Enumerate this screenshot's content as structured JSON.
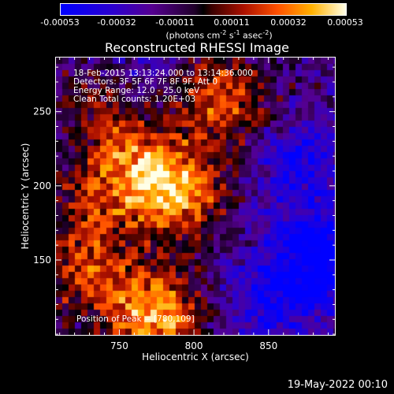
{
  "chart_data": {
    "type": "heatmap",
    "title": "Reconstructed RHESSI Image",
    "xlabel": "Heliocentric X (arcsec)",
    "ylabel": "Heliocentric Y (arcsec)",
    "xlim": [
      707,
      895
    ],
    "ylim": [
      99,
      287
    ],
    "x_ticks": [
      750,
      800,
      850
    ],
    "y_ticks": [
      150,
      200,
      250
    ],
    "colorbar": {
      "ticks": [
        "-0.00053",
        "-0.00032",
        "-0.00011",
        "0.00011",
        "0.00032",
        "0.00053"
      ],
      "range": [
        -0.00053,
        0.00053
      ],
      "unit_prefix": "(photons cm",
      "unit_sup1": "-2",
      "unit_mid1": " s",
      "unit_sup2": "-1",
      "unit_mid2": " asec",
      "unit_sup3": "-2",
      "unit_suffix": ")"
    },
    "info_lines": [
      "18-Feb-2015 13:13:24.000 to 13:14:36.000",
      "Detectors: 3F 5F 6F 7F 8F 9F, Att 0",
      "Energy Range: 12.0 - 25.0 keV",
      "Clean    Total counts: 1.20E+03"
    ],
    "peak_label": "Position of Peak = [780,109]",
    "peak_position": [
      780,
      109
    ],
    "emission_sources": [
      {
        "x": 775,
        "y": 112,
        "amplitude": 0.00053
      },
      {
        "x": 790,
        "y": 195,
        "amplitude": 0.00048
      },
      {
        "x": 760,
        "y": 210,
        "amplitude": 0.0004
      },
      {
        "x": 730,
        "y": 140,
        "amplitude": 0.00034
      },
      {
        "x": 805,
        "y": 265,
        "amplitude": 0.0003
      },
      {
        "x": 745,
        "y": 255,
        "amplitude": 0.00026
      },
      {
        "x": 830,
        "y": 250,
        "amplitude": 0.00022
      },
      {
        "x": 725,
        "y": 185,
        "amplitude": 0.0002
      }
    ],
    "negative_sources": [
      {
        "x": 885,
        "y": 150,
        "amplitude": -0.00045
      },
      {
        "x": 870,
        "y": 215,
        "amplitude": -0.0003
      },
      {
        "x": 850,
        "y": 120,
        "amplitude": -0.00025
      },
      {
        "x": 770,
        "y": 275,
        "amplitude": -0.00022
      }
    ]
  },
  "footer": {
    "date": "19-May-2022 00:10"
  }
}
